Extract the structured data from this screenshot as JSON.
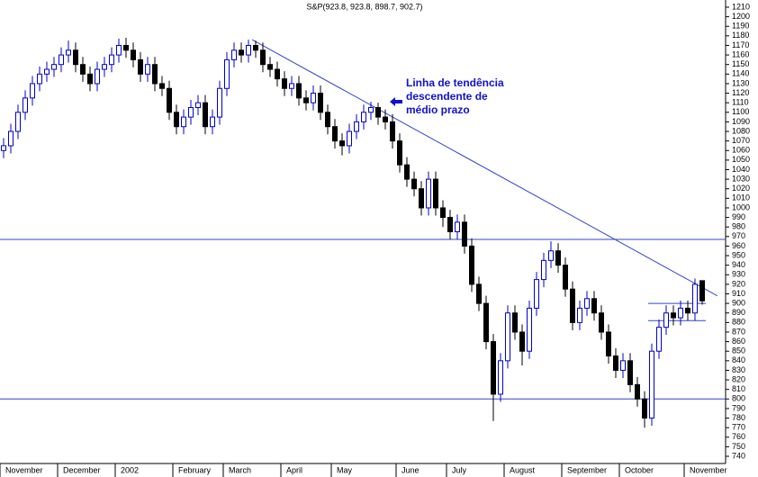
{
  "chart_data": {
    "type": "candlestick",
    "title": "S&P(923.8, 923.8, 898.7, 902.7)",
    "annotation": [
      "Linha de tendência",
      "descendente de",
      "médio prazo"
    ],
    "up_color": "#0000cc",
    "down_color": "#000000",
    "line_color": "#3344cc",
    "xlim": [
      0,
      100
    ],
    "xticks": [
      {
        "value": 0,
        "label": "November"
      },
      {
        "value": 8,
        "label": "December"
      },
      {
        "value": 16,
        "label": "2002"
      },
      {
        "value": 24,
        "label": "February"
      },
      {
        "value": 31,
        "label": "March"
      },
      {
        "value": 39,
        "label": "April"
      },
      {
        "value": 46,
        "label": "May"
      },
      {
        "value": 55,
        "label": "June"
      },
      {
        "value": 62,
        "label": "July"
      },
      {
        "value": 70,
        "label": "August"
      },
      {
        "value": 78,
        "label": "September"
      },
      {
        "value": 86,
        "label": "October"
      },
      {
        "value": 95,
        "label": "November"
      }
    ],
    "ylim": [
      740,
      1210
    ],
    "yticks": [
      740,
      750,
      760,
      770,
      780,
      790,
      800,
      810,
      820,
      830,
      840,
      850,
      860,
      870,
      880,
      890,
      900,
      910,
      920,
      930,
      940,
      950,
      960,
      970,
      980,
      990,
      1000,
      1010,
      1020,
      1030,
      1040,
      1050,
      1060,
      1070,
      1080,
      1090,
      1100,
      1110,
      1120,
      1130,
      1140,
      1150,
      1160,
      1170,
      1180,
      1190,
      1200,
      1210
    ],
    "open": [
      1060,
      1065,
      1080,
      1100,
      1115,
      1130,
      1140,
      1145,
      1150,
      1160,
      1165,
      1150,
      1140,
      1130,
      1145,
      1150,
      1160,
      1170,
      1165,
      1155,
      1140,
      1150,
      1130,
      1125,
      1100,
      1085,
      1095,
      1105,
      1110,
      1085,
      1095,
      1125,
      1155,
      1165,
      1160,
      1170,
      1165,
      1150,
      1145,
      1135,
      1125,
      1130,
      1115,
      1110,
      1120,
      1100,
      1085,
      1070,
      1065,
      1080,
      1090,
      1100,
      1105,
      1095,
      1090,
      1070,
      1045,
      1030,
      1020,
      1000,
      1030,
      1000,
      990,
      975,
      985,
      960,
      920,
      900,
      860,
      805,
      840,
      890,
      870,
      850,
      895,
      925,
      945,
      955,
      940,
      915,
      880,
      895,
      905,
      890,
      870,
      845,
      830,
      840,
      815,
      800,
      780,
      850,
      875,
      890,
      885,
      895,
      890,
      923.8
    ],
    "high": [
      1073,
      1088,
      1108,
      1123,
      1138,
      1148,
      1153,
      1158,
      1168,
      1175,
      1173,
      1158,
      1148,
      1153,
      1158,
      1168,
      1177,
      1178,
      1173,
      1163,
      1158,
      1158,
      1138,
      1133,
      1108,
      1103,
      1113,
      1118,
      1118,
      1103,
      1133,
      1163,
      1173,
      1173,
      1176,
      1175,
      1173,
      1158,
      1153,
      1143,
      1138,
      1138,
      1123,
      1128,
      1128,
      1108,
      1093,
      1078,
      1088,
      1098,
      1108,
      1111,
      1110,
      1103,
      1098,
      1078,
      1053,
      1038,
      1028,
      1038,
      1038,
      1008,
      998,
      993,
      993,
      968,
      928,
      908,
      868,
      848,
      898,
      898,
      878,
      903,
      933,
      953,
      965,
      963,
      948,
      923,
      903,
      913,
      913,
      898,
      878,
      853,
      848,
      848,
      823,
      808,
      858,
      883,
      898,
      898,
      903,
      903,
      926,
      923.8
    ],
    "low": [
      1052,
      1057,
      1072,
      1092,
      1107,
      1122,
      1132,
      1137,
      1142,
      1152,
      1142,
      1132,
      1122,
      1122,
      1137,
      1142,
      1152,
      1157,
      1147,
      1132,
      1132,
      1122,
      1117,
      1092,
      1077,
      1077,
      1087,
      1097,
      1077,
      1077,
      1087,
      1117,
      1147,
      1152,
      1152,
      1157,
      1142,
      1137,
      1127,
      1117,
      1117,
      1107,
      1102,
      1102,
      1092,
      1077,
      1062,
      1055,
      1057,
      1072,
      1082,
      1092,
      1087,
      1082,
      1062,
      1037,
      1022,
      1012,
      992,
      992,
      992,
      980,
      967,
      967,
      952,
      912,
      892,
      852,
      777,
      797,
      832,
      862,
      835,
      842,
      887,
      917,
      937,
      932,
      907,
      872,
      872,
      887,
      882,
      862,
      837,
      822,
      822,
      807,
      792,
      770,
      772,
      842,
      867,
      877,
      877,
      882,
      882,
      898.7
    ],
    "close": [
      1065,
      1080,
      1100,
      1115,
      1130,
      1140,
      1145,
      1150,
      1160,
      1165,
      1150,
      1140,
      1130,
      1145,
      1150,
      1160,
      1170,
      1165,
      1155,
      1140,
      1150,
      1130,
      1125,
      1100,
      1085,
      1095,
      1105,
      1110,
      1085,
      1095,
      1125,
      1155,
      1165,
      1160,
      1170,
      1165,
      1150,
      1145,
      1135,
      1125,
      1130,
      1115,
      1110,
      1120,
      1100,
      1085,
      1070,
      1065,
      1080,
      1090,
      1100,
      1105,
      1095,
      1090,
      1070,
      1045,
      1030,
      1020,
      1000,
      1030,
      1000,
      990,
      975,
      985,
      960,
      920,
      900,
      860,
      805,
      840,
      890,
      870,
      850,
      895,
      925,
      945,
      955,
      940,
      915,
      880,
      895,
      905,
      890,
      870,
      845,
      830,
      840,
      815,
      800,
      780,
      850,
      875,
      890,
      885,
      895,
      890,
      920,
      902.7
    ],
    "hlines": [
      967,
      800
    ],
    "segments": [
      {
        "x": [
          35,
          99.6
        ],
        "y": [
          1176,
          908
        ]
      },
      {
        "x": [
          90,
          98
        ],
        "y": [
          900,
          900
        ]
      },
      {
        "x": [
          90,
          98
        ],
        "y": [
          882,
          882
        ]
      }
    ]
  }
}
